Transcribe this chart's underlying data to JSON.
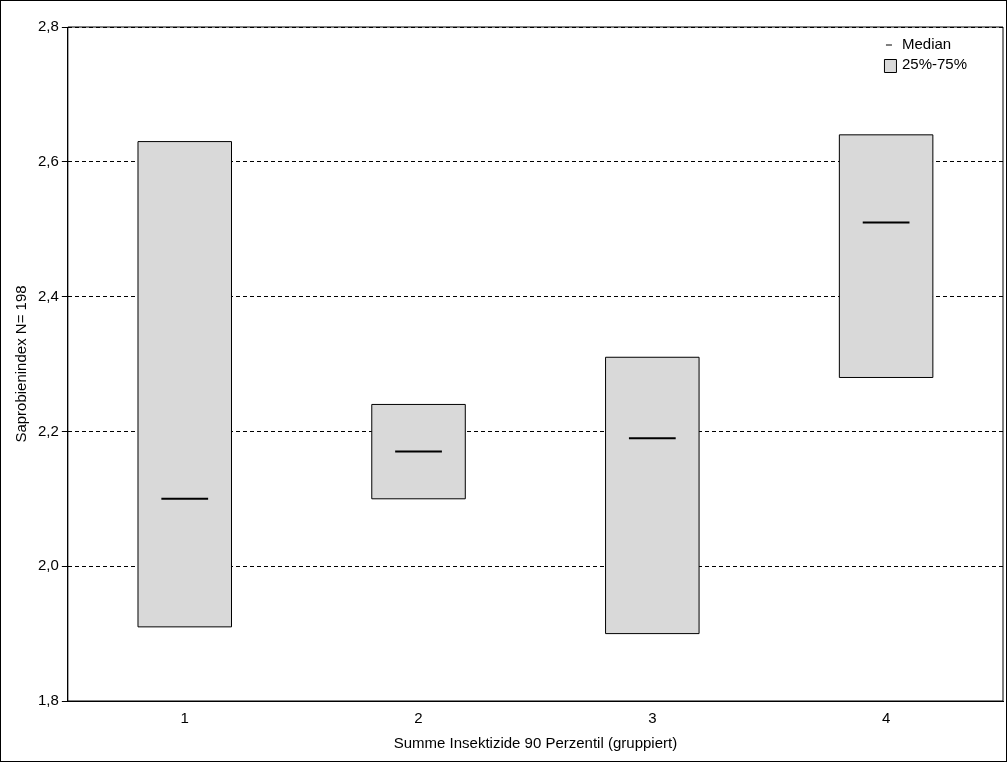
{
  "chart_data": {
    "type": "box",
    "xlabel": "Summe Insektizide 90 Perzentil (gruppiert)",
    "ylabel": "Saprobienindex N= 198",
    "categories": [
      "1",
      "2",
      "3",
      "4"
    ],
    "ylim": [
      1.8,
      2.8
    ],
    "yticks": [
      {
        "value": 1.8,
        "label": "1,8"
      },
      {
        "value": 2.0,
        "label": "2,0"
      },
      {
        "value": 2.2,
        "label": "2,2"
      },
      {
        "value": 2.4,
        "label": "2,4"
      },
      {
        "value": 2.6,
        "label": "2,6"
      },
      {
        "value": 2.8,
        "label": "2,8"
      }
    ],
    "grid": "y",
    "legend": "top right",
    "series": [
      {
        "type": "box",
        "name": "25%-75%",
        "color": "#d9d9d9",
        "boxes": [
          {
            "low": 1.91,
            "q1": 1.91,
            "median": 2.1,
            "q3": 2.63,
            "high": 2.63
          },
          {
            "low": 2.1,
            "q1": 2.1,
            "median": 2.17,
            "q3": 2.24,
            "high": 2.24
          },
          {
            "low": 1.9,
            "q1": 1.9,
            "median": 2.19,
            "q3": 2.31,
            "high": 2.31
          },
          {
            "low": 2.28,
            "q1": 2.28,
            "median": 2.51,
            "q3": 2.64,
            "high": 2.64
          }
        ]
      }
    ],
    "annotations": [
      "Median"
    ]
  }
}
